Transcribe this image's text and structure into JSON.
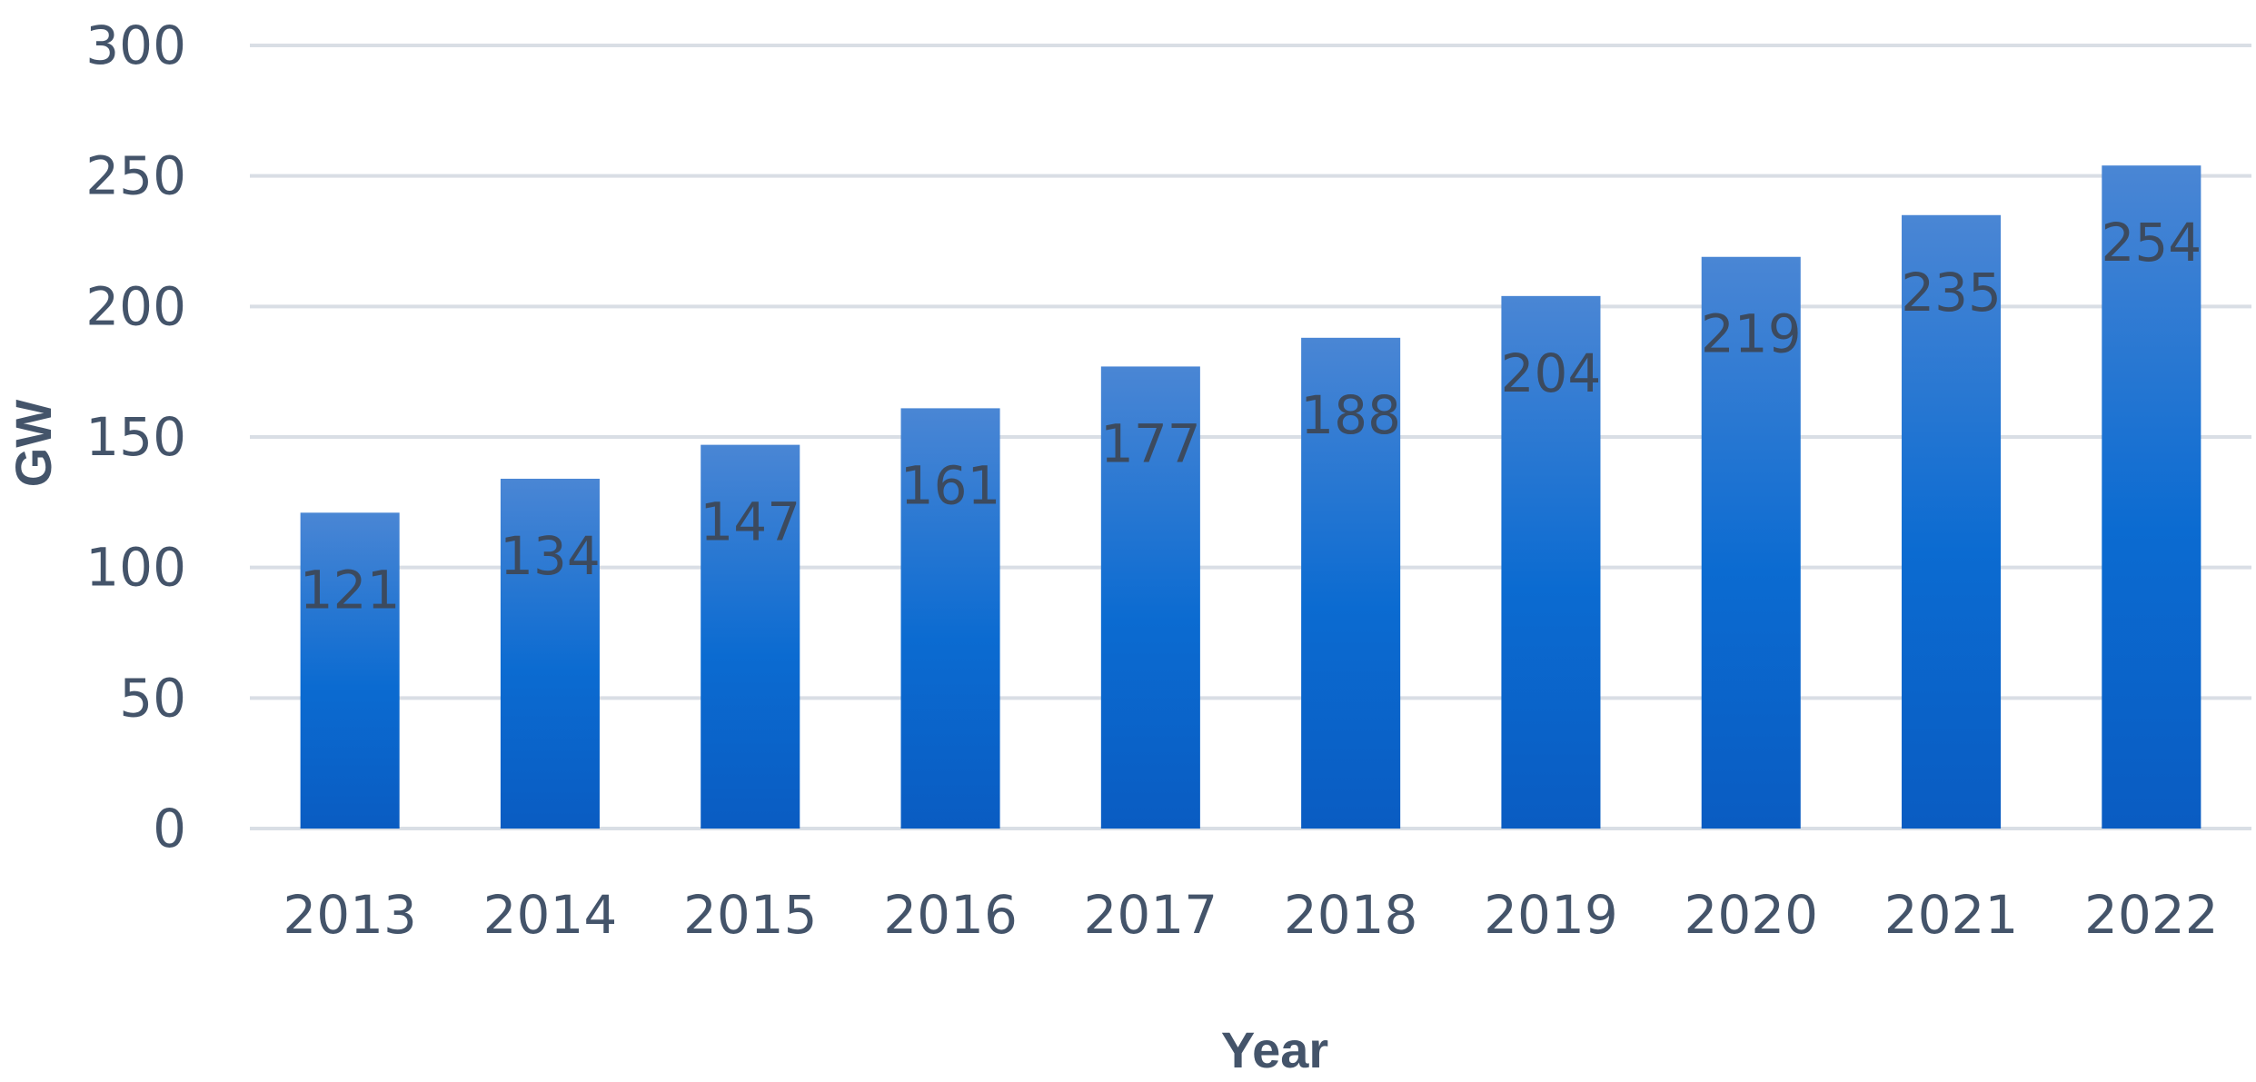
{
  "chart_data": {
    "type": "bar",
    "categories": [
      "2013",
      "2014",
      "2015",
      "2016",
      "2017",
      "2018",
      "2019",
      "2020",
      "2021",
      "2022"
    ],
    "series": [
      {
        "values": [
          121,
          134,
          147,
          161,
          177,
          188,
          204,
          219,
          235,
          254
        ]
      }
    ],
    "title": "",
    "xlabel": "Year",
    "ylabel": "GW",
    "ylim": [
      0,
      300
    ],
    "yticks": [
      "0",
      "50",
      "100",
      "150",
      "200",
      "250",
      "300"
    ],
    "grid": true,
    "legend": "none",
    "bar_color_top": "#4a86d4",
    "bar_color_bottom": "#0a5cc2",
    "grid_color": "#d9dee5",
    "label_color": "#44546a"
  }
}
